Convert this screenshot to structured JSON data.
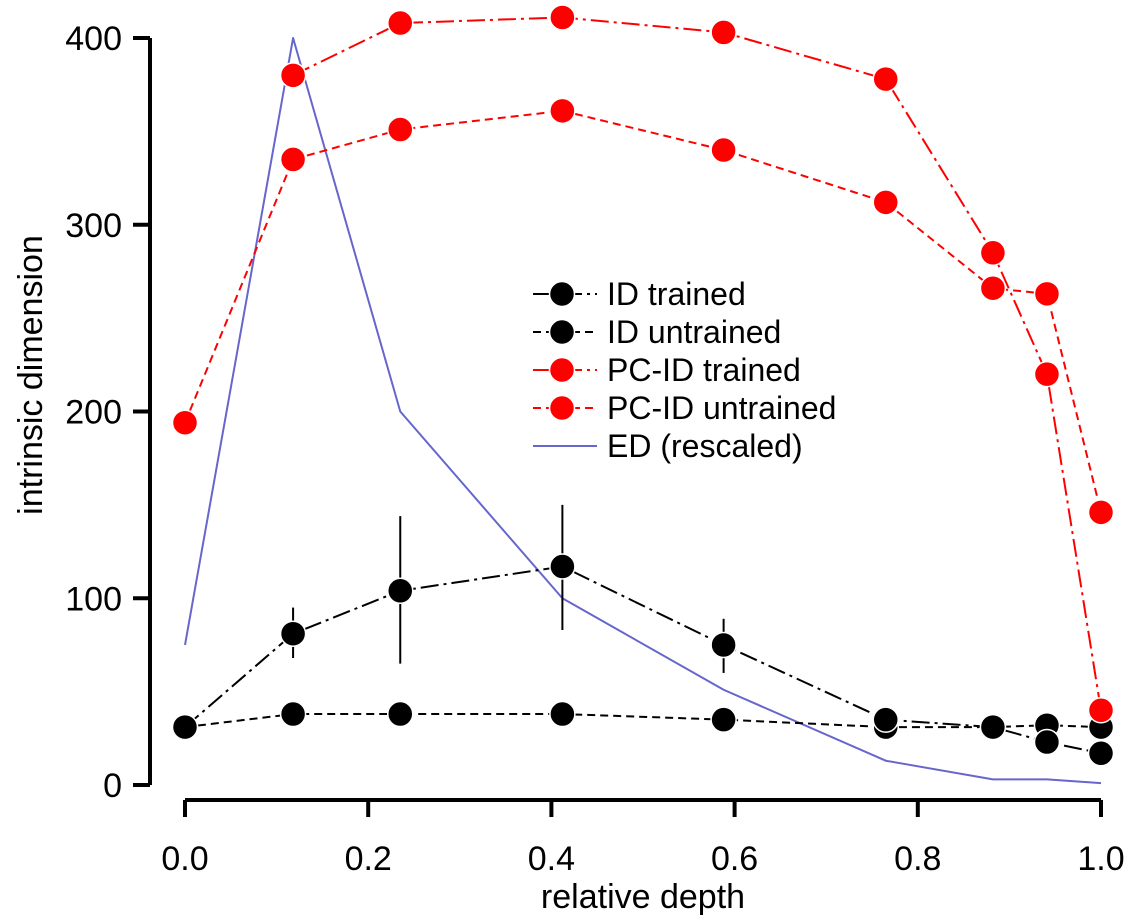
{
  "chart_data": {
    "type": "line",
    "title": "",
    "xlabel": "relative depth",
    "ylabel": "intrinsic dimension",
    "xlim": [
      0.0,
      1.0
    ],
    "ylim": [
      0,
      400
    ],
    "xticks": [
      "0.0",
      "0.2",
      "0.4",
      "0.6",
      "0.8",
      "1.0"
    ],
    "yticks": [
      "0",
      "100",
      "200",
      "300",
      "400"
    ],
    "grid": false,
    "legend_position": "center-right",
    "series": [
      {
        "name": "ID trained",
        "color": "#000000",
        "line_style": "dash-dot",
        "marker": "circle",
        "x": [
          0.0,
          0.118,
          0.235,
          0.412,
          0.588,
          0.765,
          0.882,
          0.941,
          1.0
        ],
        "y": [
          31,
          81,
          104,
          117,
          75,
          35,
          31,
          23,
          17
        ],
        "error_low": [
          null,
          68,
          65,
          83,
          60,
          null,
          null,
          null,
          null
        ],
        "error_high": [
          null,
          95,
          144,
          150,
          89,
          null,
          null,
          null,
          null
        ]
      },
      {
        "name": "ID untrained",
        "color": "#000000",
        "line_style": "dashed",
        "marker": "circle",
        "x": [
          0.0,
          0.118,
          0.235,
          0.412,
          0.588,
          0.765,
          0.882,
          0.941,
          1.0
        ],
        "y": [
          31,
          38,
          38,
          38,
          35,
          31,
          31,
          32,
          31
        ]
      },
      {
        "name": "PC-ID trained",
        "color": "#ff0000",
        "line_style": "dash-dot",
        "marker": "circle",
        "x": [
          0.118,
          0.235,
          0.412,
          0.588,
          0.765,
          0.882,
          0.941,
          1.0
        ],
        "y": [
          380,
          408,
          411,
          403,
          378,
          285,
          220,
          40
        ]
      },
      {
        "name": "PC-ID untrained",
        "color": "#ff0000",
        "line_style": "dashed",
        "marker": "circle",
        "x": [
          0.0,
          0.118,
          0.235,
          0.412,
          0.588,
          0.765,
          0.882,
          0.941,
          1.0
        ],
        "y": [
          194,
          335,
          351,
          361,
          340,
          312,
          266,
          263,
          146
        ]
      },
      {
        "name": "ED (rescaled)",
        "color": "#6666cc",
        "line_style": "solid",
        "marker": "none",
        "x": [
          0.0,
          0.118,
          0.235,
          0.412,
          0.588,
          0.765,
          0.882,
          0.941,
          1.0
        ],
        "y": [
          75,
          400,
          200,
          100,
          51,
          13,
          3,
          3,
          1
        ]
      }
    ]
  }
}
